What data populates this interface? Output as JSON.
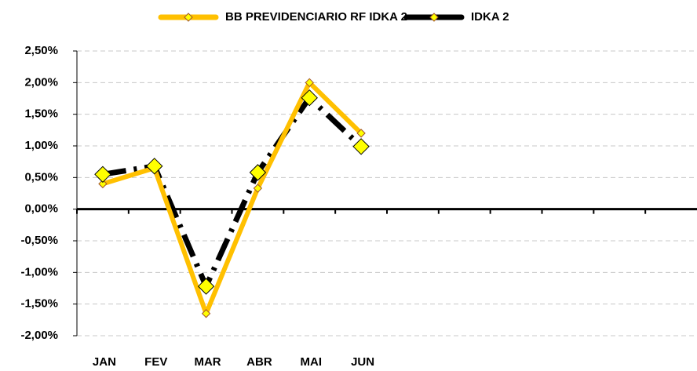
{
  "chart_data": {
    "type": "line",
    "categories": [
      "JAN",
      "FEV",
      "MAR",
      "ABR",
      "MAI",
      "JUN",
      null,
      null,
      null,
      null,
      null,
      null
    ],
    "series": [
      {
        "name": "BB PREVIDENCIARIO RF IDKA 2",
        "color": "#FFC000",
        "marker_color": "#FFFF00",
        "values": [
          0.4,
          0.65,
          -1.65,
          0.33,
          2.0,
          1.2,
          null,
          null,
          null,
          null,
          null,
          null
        ]
      },
      {
        "name": "IDKA 2",
        "color": "#000000",
        "marker_color": "#FFFF00",
        "values": [
          0.55,
          0.68,
          -1.22,
          0.58,
          1.76,
          0.99,
          null,
          null,
          null,
          null,
          null,
          null
        ]
      }
    ],
    "ylim": [
      -2.0,
      2.5
    ],
    "yticks": [
      {
        "value": -2.0,
        "label": "-2,00%"
      },
      {
        "value": -1.5,
        "label": "-1,50%"
      },
      {
        "value": -1.0,
        "label": "-1,00%"
      },
      {
        "value": -0.5,
        "label": "-0,50%"
      },
      {
        "value": 0,
        "label": "0,00%"
      },
      {
        "value": 0.5,
        "label": "0,50%"
      },
      {
        "value": 1.0,
        "label": "1,00%"
      },
      {
        "value": 1.5,
        "label": "1,50%"
      },
      {
        "value": 2.0,
        "label": "2,00%"
      },
      {
        "value": 2.5,
        "label": "2,50%"
      }
    ],
    "grid": true,
    "legend": "top"
  }
}
